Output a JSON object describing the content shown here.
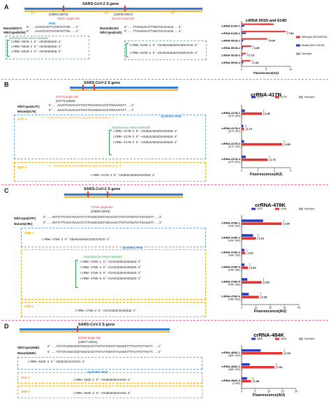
{
  "panels": {
    "A": {
      "letter": "A",
      "gene_title": "SARS-CoV-2 S gene",
      "range1": "(23053-23073)",
      "range2": "(23405-23417)",
      "n501_site": "N501Y target site",
      "d614_site": "D614G target site",
      "pam": "PAM",
      "mut_label": "Mutant(501Y)",
      "wt_label": "Wild-type(501N)",
      "mut_seq": "5'...CAACCCACTTATGGTGTTGG...3'",
      "wt_seq": "5'...CAACCCACTAATGGTGTTGG...3'",
      "mismatch_note": "Introduced an extra mismatch",
      "cr501_1": "crRNA-501N-1  5'-AGAGGUGUUG-3'",
      "cr501_2": "crRNA-501N-2  5'-AGAGGUGUUG-3'",
      "cr501_3": "crRNA-501N-3  5'-AGAGGUGUUG-3'",
      "mut614_label": "Mutant(614G)",
      "wt614_label": "Wild-type(614D)",
      "mut614_seq": "5'...TTAGAGACATTTGGTACACAGAG...3'",
      "wt614_seq": "5'...TTAGAGACATTAGGTACACAGAG...3'",
      "cr614_1": "crRNA-614D-1  5'-UCAGGAUGUUAACUGCACAG-3'",
      "cr614_2": "crRNA-614D-2  5'-UCAGGAUGUUAACUGCACAG-3'",
      "f_labels": [
        "F3",
        "F2",
        "F1"
      ]
    },
    "B": {
      "letter": "B",
      "gene_title": "SARS-CoV-2 S gene",
      "site": "K417N target site",
      "range": "(22776-22829)",
      "wt_label": "Wild-type(417K)",
      "mut_label": "Mutant(417N)",
      "wt_seq": "5'...GAAGTCAGACAAATCGCTCCAGGGCAAACTGGAAAGATT...3'",
      "mut_seq": "5'...GAAGTCAGACAAATCGCTCCAGGGCAAACTGGAAATATT...3'",
      "f1": "417F-1",
      "f2": "417F-2",
      "f1_seq": "5'-GAAGTCAGACAAATCGCTCCAGGGCAAACTGGAAAG-3'",
      "f2_seq": "5'-GAAGTCAGACAAATCGCTCCAGGGCAAACTGGAAAG-3'",
      "syn_pam": "Synthetic PAM",
      "mismatch_note": "Introduced an extra mismatch",
      "cr1": "crRNA-417N-1  5'-AAUUUCAUGUCUAUAUUU-3'",
      "cr2": "crRNA-417N-2  5'-AAUUUCAUGUCUAUAUUU-3'",
      "cr3": "crRNA-417N-3  5'-AAUUUCAUGUCUAUAUUU-3'",
      "cr4": "crRNA-417N-4  5'-AAUUUCAUGUCUAUAUUU-3'"
    },
    "C": {
      "letter": "C",
      "gene_title": "SARS-CoV-2 S gene",
      "site": "T478K target site",
      "range": "(22960-23018)",
      "wt_label": "Wild-type(478T)",
      "mut_label": "Mutant(478K)",
      "wt_seq": "5'...AGTATTTCAACTGAAATCTATCAGGCCGGTAGCACACCTTGTAATGGTGTTGAAGGTT...3'",
      "mut_seq": "5'...AGTATTTCAACTGAAATCTATCAGGCCGGTAGCAAACCTTGTAATGGTGTTGAAGGTT...3'",
      "f1": "478F-1",
      "f2": "478F-2",
      "syn_pam": "Synthetic PAM",
      "mismatch_note": "Introduced an extra mismatch",
      "cr3": "crRNA-478K-3  5'-UUUAGAUAGUCCGGCCAUCG-3'",
      "cr1": "crRNA-478K-1  5'-CCAACUUGAUAGUUUG-3'",
      "cr4": "crRNA-478K-4  5'-CCAACUUGAUAGUUUG-3'",
      "cr5": "crRNA-478K-5  5'-CCAACUUGAUAGUUUG-3'",
      "cr6": "crRNA-478K-6  5'-CCAACUUGAUAGUUUG-3'",
      "cr2": "crRNA-478K-2  5'-CCAACUUGAUAGUUUG-3'"
    },
    "D": {
      "letter": "D",
      "gene_title": "SARS-CoV-2 S gene",
      "site": "E484K target site",
      "range": "(22977-23031)",
      "wt_label": "Wild-type(484E)",
      "mut_label": "Mutant(484K)",
      "wt_seq": "5'...TCTATCAGGCCGGTAGCACACCTTGTAATGGTGTTGAAGGTTTTAATTGTTACTT...3'",
      "mut_seq": "5'...TCTATCAGGCCGGTAGCACACCTTGTAATGGTGTTAAAGGTTTTAATTGTTACTT...3'",
      "f1": "484F-1",
      "f2": "484F-2",
      "syn_pam": "Synthetic PAM",
      "cr3": "crRNA-484K-3  5'-CGGUAGCACACCAA-3'",
      "cr1": "crRNA-484K-1  5'-AAUGGUGUUAAAGG-3'",
      "cr2": "crRNA-484K-2  5'-AAUGGUGUUAAAGG-3'"
    }
  },
  "colors": {
    "red": "#e3342f",
    "blue": "#1f3fbf",
    "grey": "#9e9e9e",
    "green": "#22a545",
    "orange": "#f3a712"
  },
  "chart_data": [
    {
      "type": "bar",
      "title": "crRNA-501N and 614D",
      "xlabel": "Fluorescence(AU)",
      "xlim": [
        0,
        10
      ],
      "xticks": [
        "0",
        "5",
        "10"
      ],
      "categories": [
        "crRNA-614D-1",
        "crRNA-614D-2",
        "crRNA-501N-1",
        "crRNA-501N-2",
        "crRNA-501N-3",
        "crRNA-501N-4"
      ],
      "sublabels": [
        "",
        "",
        "",
        "",
        "",
        ""
      ],
      "series": [
        {
          "name": "Wild-type (501N/614D)",
          "color": "#e3342f",
          "values": [
            6.6,
            9.0,
            5.2,
            2.0,
            0.9,
            1.8
          ]
        },
        {
          "name": "Mutant (501Y/614G)",
          "color": "#1f3fbf",
          "values": [
            0.55,
            0.9,
            0.35,
            0.3,
            0.2,
            0.35
          ]
        },
        {
          "name": "Not input",
          "color": "#9e9e9e",
          "values": [
            0.15,
            0.2,
            0.15,
            0.15,
            0.1,
            0.15
          ]
        }
      ],
      "ratios": [
        "",
        "7.81",
        "4.04",
        "1.69",
        "2.79",
        "1.44"
      ],
      "ratio_label": "(F2/R3)"
    },
    {
      "type": "bar",
      "title": "crRNA-417N",
      "xlabel": "Fluorescence(AU)",
      "xlim": [
        0,
        6
      ],
      "xticks": [
        "0",
        "2",
        "4",
        "6"
      ],
      "categories": [
        "crRNA-417N-1",
        "crRNA-417N-2",
        "crRNA-417N-3",
        "crRNA-417N-4"
      ],
      "sublabels": [
        "(417F-1/R1)",
        "(417F-1/R1)",
        "(417F-1/R1)",
        "(417F-2/R1)"
      ],
      "series": [
        {
          "name": "417K",
          "color": "#1f3fbf",
          "values": [
            0.4,
            0.2,
            0.3,
            0.5
          ]
        },
        {
          "name": "417N",
          "color": "#e3342f",
          "values": [
            2.5,
            0.3,
            5.0,
            3.2
          ]
        },
        {
          "name": "Not input",
          "color": "#9e9e9e",
          "values": [
            0.1,
            0.1,
            0.1,
            0.1
          ]
        }
      ],
      "ratios": [
        "2.28",
        "1.70",
        "4.50",
        "2.70"
      ]
    },
    {
      "type": "bar",
      "title": "crRNA-478K",
      "xlabel": "Fluorescence(AU)",
      "xlim": [
        0,
        40
      ],
      "xticks": [
        "0",
        "10",
        "20",
        "30",
        "40"
      ],
      "categories": [
        "crRNA-478K-1",
        "crRNA-478K-2",
        "crRNA-478K-3",
        "crRNA-478K-4",
        "crRNA-478K-5",
        "crRNA-478K-6"
      ],
      "sublabels": [
        "(478F-1/R1)",
        "(478F-1/R2)",
        "(478F-1/R2)",
        "(478F-1/R2)",
        "(478F-1/R2)",
        "(478F-2/R2)"
      ],
      "series": [
        {
          "name": "478T",
          "color": "#1f3fbf",
          "values": [
            15.0,
            8.0,
            2.0,
            2.0,
            4.0,
            5.0
          ]
        },
        {
          "name": "478K",
          "color": "#e3342f",
          "values": [
            28.0,
            10.0,
            2.5,
            4.5,
            14.0,
            12.0
          ]
        },
        {
          "name": "Not input",
          "color": "#9e9e9e",
          "values": [
            0.5,
            0.5,
            0.5,
            0.5,
            0.5,
            0.5
          ]
        }
      ],
      "ratios": [
        "1.90",
        "1.16",
        "1.03",
        "2.81",
        "3.52",
        "2.28"
      ]
    },
    {
      "type": "bar",
      "title": "crRNA-484K",
      "xlabel": "Fluorescence(AU)",
      "xlim": [
        0,
        20
      ],
      "xticks": [
        "0",
        "5",
        "10",
        "15",
        "20"
      ],
      "categories": [
        "crRNA-484K-1",
        "crRNA-484K-2",
        "crRNA-484K-3"
      ],
      "sublabels": [
        "(484F-1/R2)",
        "(484F-1/R2)",
        "(F1/R2)"
      ],
      "series": [
        {
          "name": "484E",
          "color": "#1f3fbf",
          "values": [
            7.0,
            3.0,
            2.0
          ]
        },
        {
          "name": "484K",
          "color": "#e3342f",
          "values": [
            15.0,
            12.0,
            3.5
          ]
        },
        {
          "name": "Not input",
          "color": "#9e9e9e",
          "values": [
            0.3,
            0.3,
            0.3
          ]
        }
      ],
      "ratios": [
        "2.03",
        "7.04",
        "1.08"
      ]
    }
  ]
}
